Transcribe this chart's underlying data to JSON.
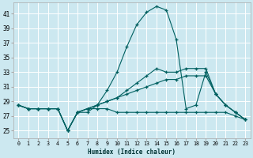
{
  "xlabel": "Humidex (Indice chaleur)",
  "background_color": "#cce8f0",
  "grid_color": "#ffffff",
  "line_color": "#006060",
  "x_ticks": [
    0,
    1,
    2,
    3,
    4,
    5,
    6,
    7,
    8,
    9,
    10,
    11,
    12,
    13,
    14,
    15,
    16,
    17,
    18,
    19,
    20,
    21,
    22,
    23
  ],
  "y_ticks": [
    25,
    27,
    29,
    31,
    33,
    35,
    37,
    39,
    41
  ],
  "ylim": [
    24.0,
    42.5
  ],
  "xlim": [
    -0.5,
    23.5
  ],
  "series": [
    {
      "x": [
        0,
        1,
        2,
        3,
        4,
        5,
        6,
        7,
        8,
        9,
        10,
        11,
        12,
        13,
        14,
        15,
        16,
        17,
        18,
        19,
        20,
        21,
        22,
        23
      ],
      "y": [
        28.5,
        28.0,
        28.0,
        28.0,
        28.0,
        25.0,
        27.5,
        27.5,
        28.5,
        30.5,
        33.0,
        36.5,
        39.5,
        41.2,
        42.0,
        41.5,
        37.5,
        28.0,
        28.5,
        33.0,
        30.0,
        28.5,
        27.5,
        26.5
      ]
    },
    {
      "x": [
        0,
        1,
        2,
        3,
        4,
        5,
        6,
        7,
        8,
        9,
        10,
        11,
        12,
        13,
        14,
        15,
        16,
        17,
        18,
        19,
        20,
        21,
        22,
        23
      ],
      "y": [
        28.5,
        28.0,
        28.0,
        28.0,
        28.0,
        25.0,
        27.5,
        28.0,
        28.5,
        29.0,
        29.5,
        30.5,
        31.5,
        32.5,
        33.5,
        33.0,
        33.0,
        33.5,
        33.5,
        33.5,
        30.0,
        28.5,
        27.5,
        26.5
      ]
    },
    {
      "x": [
        0,
        1,
        2,
        3,
        4,
        5,
        6,
        7,
        8,
        9,
        10,
        11,
        12,
        13,
        14,
        15,
        16,
        17,
        18,
        19,
        20,
        21,
        22,
        23
      ],
      "y": [
        28.5,
        28.0,
        28.0,
        28.0,
        28.0,
        25.0,
        27.5,
        28.0,
        28.5,
        29.0,
        29.5,
        30.0,
        30.5,
        31.0,
        31.5,
        32.0,
        32.0,
        32.5,
        32.5,
        32.5,
        30.0,
        28.5,
        27.5,
        26.5
      ]
    },
    {
      "x": [
        0,
        1,
        2,
        3,
        4,
        5,
        6,
        7,
        8,
        9,
        10,
        11,
        12,
        13,
        14,
        15,
        16,
        17,
        18,
        19,
        20,
        21,
        22,
        23
      ],
      "y": [
        28.5,
        28.0,
        28.0,
        28.0,
        28.0,
        25.0,
        27.5,
        28.0,
        28.0,
        28.0,
        27.5,
        27.5,
        27.5,
        27.5,
        27.5,
        27.5,
        27.5,
        27.5,
        27.5,
        27.5,
        27.5,
        27.5,
        27.0,
        26.5
      ]
    }
  ]
}
